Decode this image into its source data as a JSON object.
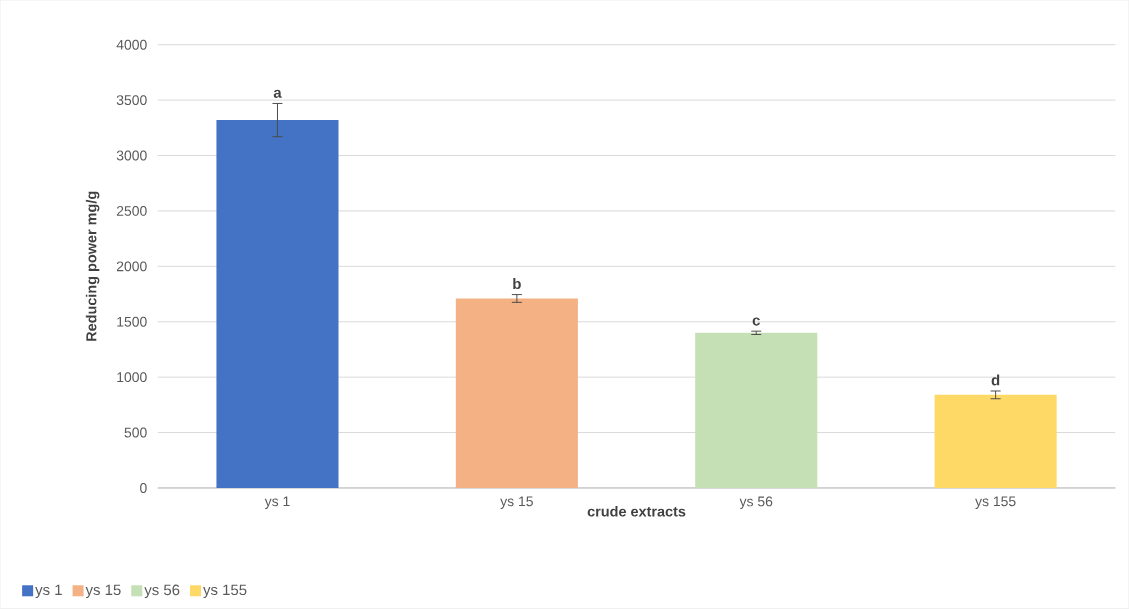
{
  "chart_data": {
    "type": "bar",
    "xlabel": "crude extracts",
    "ylabel": "Reducing power mg/g",
    "categories": [
      "ys 1",
      "ys 15",
      "ys 56",
      "ys 155"
    ],
    "series": [
      {
        "name": "ys 1",
        "color": "#4472c4",
        "values": [
          3320,
          null,
          null,
          null
        ],
        "errors": [
          150,
          null,
          null,
          null
        ]
      },
      {
        "name": "ys 15",
        "color": "#f4b183",
        "values": [
          null,
          1710,
          null,
          null
        ],
        "errors": [
          null,
          35,
          null,
          null
        ]
      },
      {
        "name": "ys 56",
        "color": "#c5e0b4",
        "values": [
          null,
          null,
          1400,
          null
        ],
        "errors": [
          null,
          null,
          15,
          null
        ]
      },
      {
        "name": "ys 155",
        "color": "#ffd966",
        "values": [
          null,
          null,
          null,
          840
        ],
        "errors": [
          null,
          null,
          null,
          35
        ]
      }
    ],
    "ylim": [
      0,
      4000
    ],
    "yticks": [
      0,
      500,
      1000,
      1500,
      2000,
      2500,
      3000,
      3500,
      4000
    ],
    "grid": "y",
    "legend": "bottom",
    "annotations": [
      "a",
      "b",
      "c",
      "d"
    ]
  }
}
